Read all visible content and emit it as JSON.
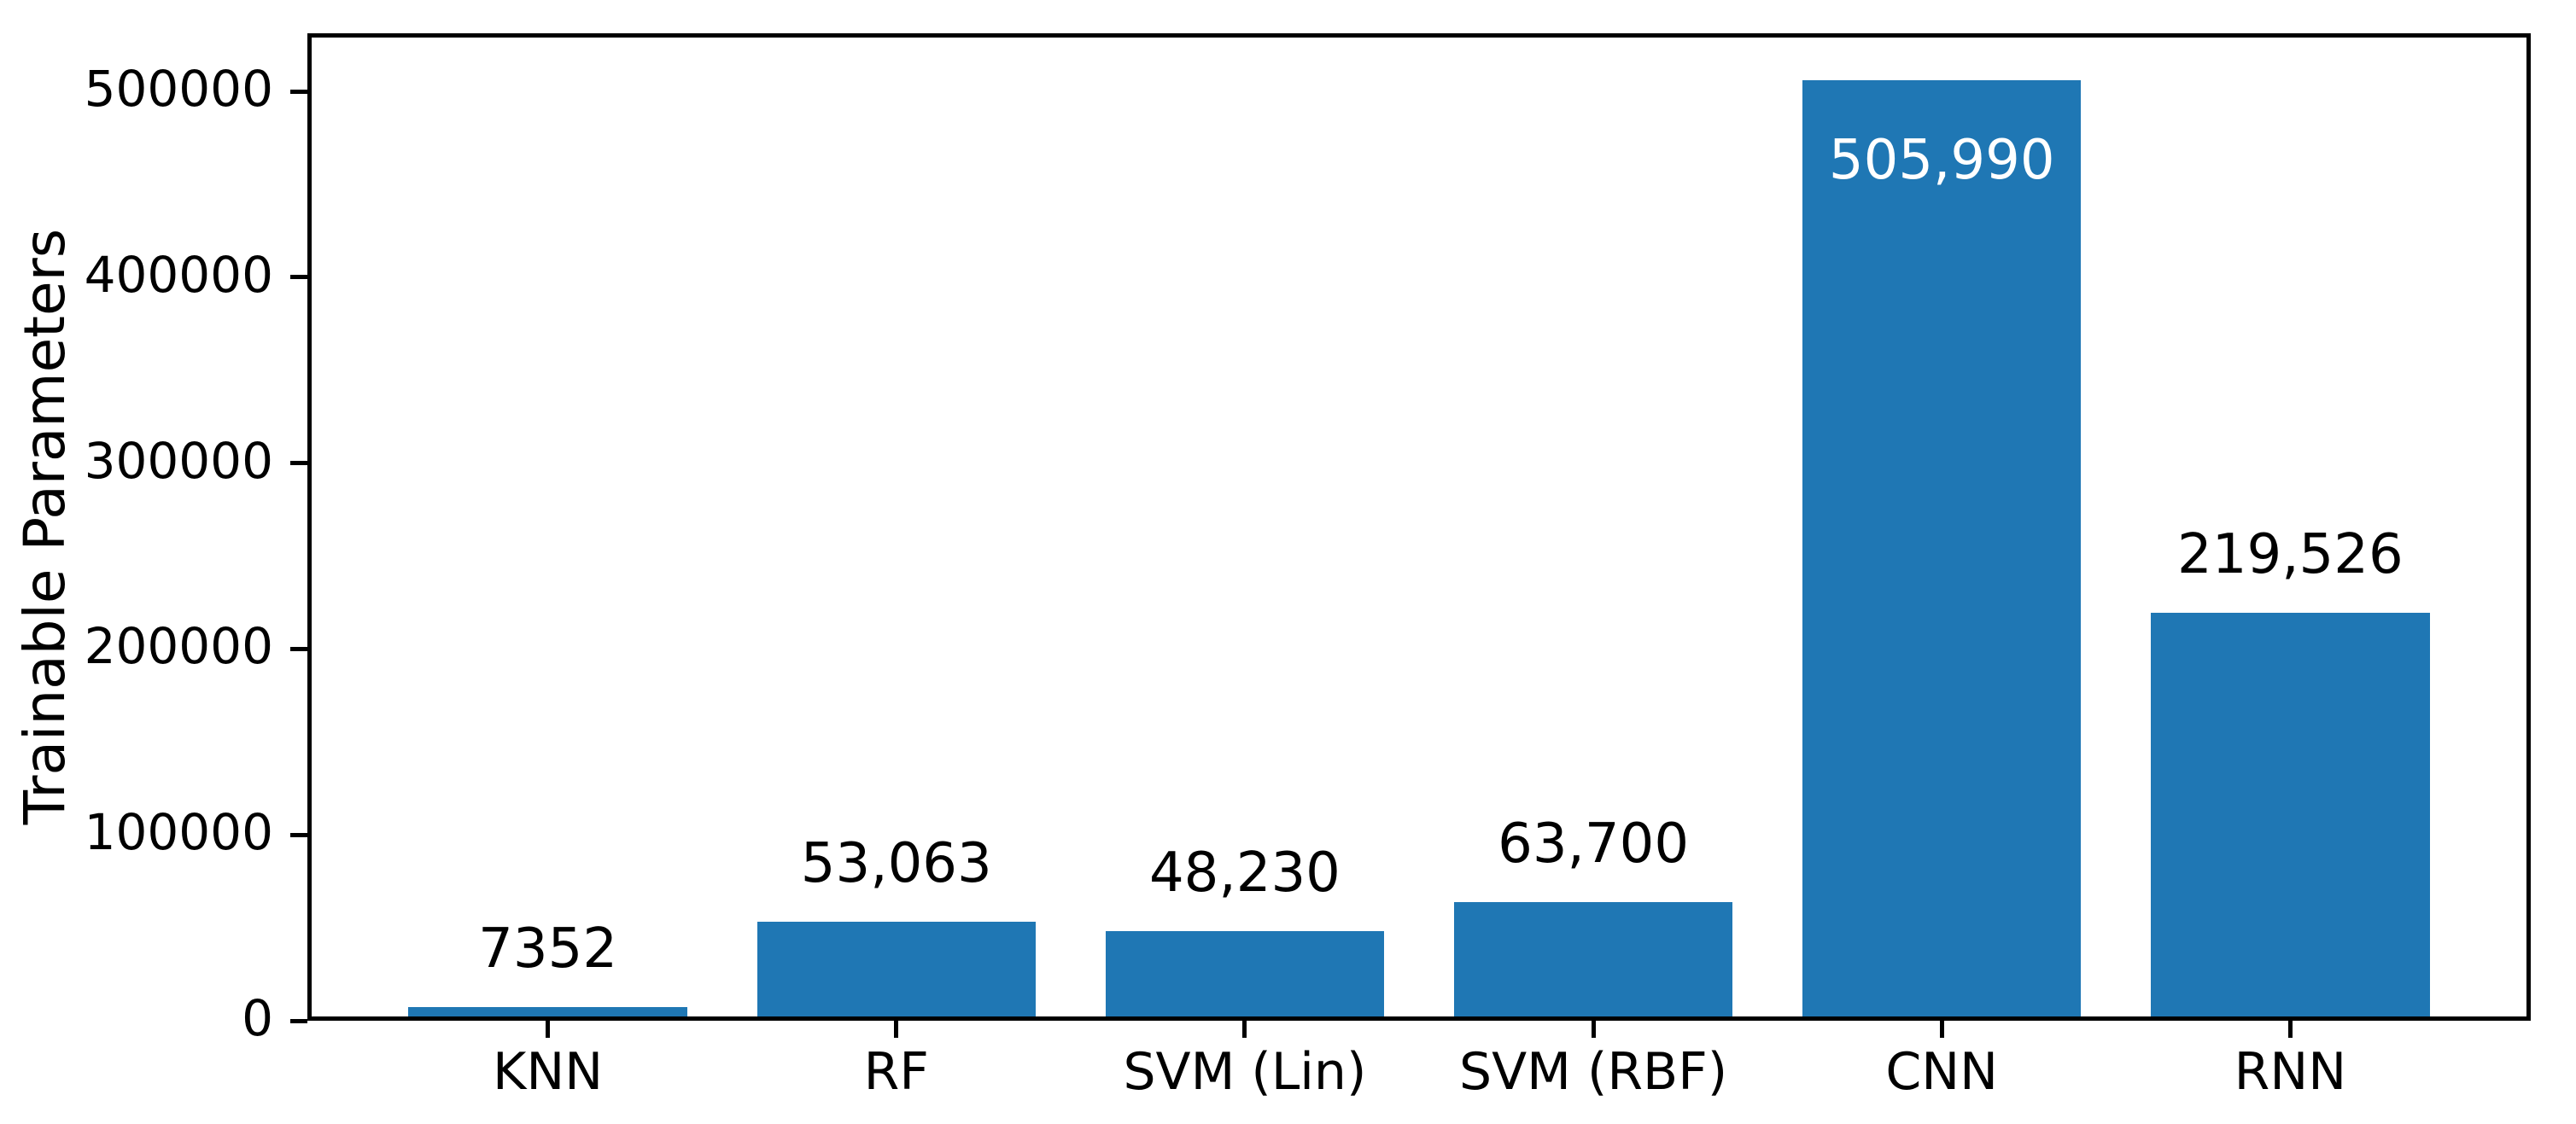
{
  "figure": {
    "background": "#ffffff"
  },
  "chart_data": {
    "type": "bar",
    "title": "",
    "xlabel": "",
    "ylabel": "Trainable Parameters",
    "categories": [
      "KNN",
      "RF",
      "SVM (Lin)",
      "SVM (RBF)",
      "CNN",
      "RNN"
    ],
    "values": [
      7352,
      53063,
      48230,
      63700,
      505990,
      219526
    ],
    "bar_labels": [
      "7352",
      "53,063",
      "48,230",
      "63,700",
      "505,990",
      "219,526"
    ],
    "bar_label_inside": [
      false,
      false,
      false,
      false,
      true,
      false
    ],
    "ylim": [
      0,
      531290
    ],
    "yticks": [
      0,
      100000,
      200000,
      300000,
      400000,
      500000
    ],
    "ytick_labels": [
      "0",
      "100000",
      "200000",
      "300000",
      "400000",
      "500000"
    ],
    "grid": false,
    "legend": null,
    "bar_color": "#1f77b4",
    "bar_label_color": "#000000",
    "bar_label_inside_color": "#ffffff",
    "axis_color": "#000000",
    "text_color": "#000000"
  }
}
